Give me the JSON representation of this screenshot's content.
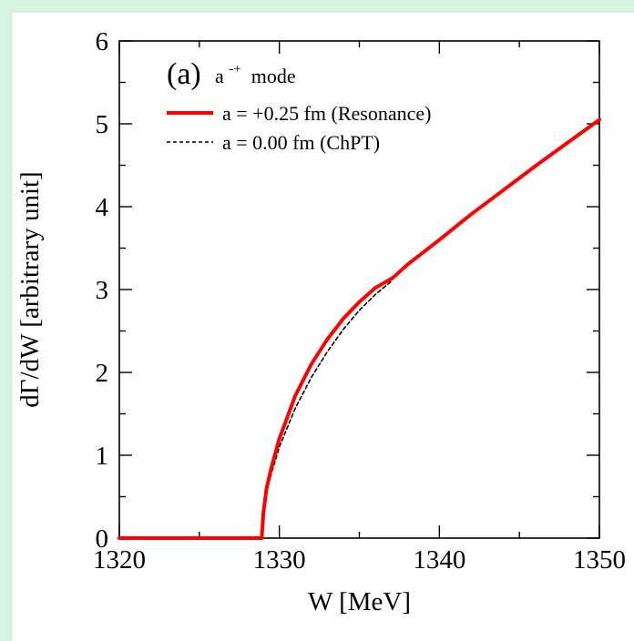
{
  "chart_data": {
    "type": "line",
    "panel_label": "(a)",
    "mode_label": "a",
    "mode_superscript": "-+",
    "mode_suffix": " mode",
    "xlabel": "W [MeV]",
    "ylabel": "dΓ/dW [arbitrary unit]",
    "xlim": [
      1320,
      1350
    ],
    "ylim": [
      0,
      6
    ],
    "xticks": [
      1320,
      1330,
      1340,
      1350
    ],
    "yticks": [
      0,
      1,
      2,
      3,
      4,
      5,
      6
    ],
    "grid": false,
    "legend_position": "top-left",
    "series": [
      {
        "name": "a = +0.25 fm (Resonance)",
        "color": "#ff0000",
        "style": "solid",
        "x": [
          1320,
          1328.9,
          1329.0,
          1329.2,
          1329.5,
          1330,
          1331,
          1332,
          1333,
          1334,
          1335,
          1336,
          1337,
          1337.2,
          1338,
          1340,
          1342,
          1344,
          1346,
          1348,
          1350
        ],
        "y": [
          0,
          0,
          0.3,
          0.6,
          0.85,
          1.2,
          1.72,
          2.1,
          2.4,
          2.65,
          2.85,
          3.02,
          3.13,
          3.16,
          3.3,
          3.6,
          3.91,
          4.2,
          4.49,
          4.77,
          5.05
        ]
      },
      {
        "name": "a = 0.00 fm (ChPT)",
        "color": "#000000",
        "style": "dashed",
        "x": [
          1320,
          1328.9,
          1329.0,
          1329.2,
          1329.5,
          1330,
          1331,
          1332,
          1333,
          1334,
          1335,
          1336,
          1337,
          1337.2,
          1338,
          1340,
          1342,
          1344,
          1346,
          1348,
          1350
        ],
        "y": [
          0,
          0,
          0.28,
          0.55,
          0.78,
          1.1,
          1.57,
          1.94,
          2.25,
          2.52,
          2.75,
          2.94,
          3.1,
          3.16,
          3.3,
          3.6,
          3.91,
          4.2,
          4.49,
          4.77,
          5.05
        ]
      }
    ]
  }
}
